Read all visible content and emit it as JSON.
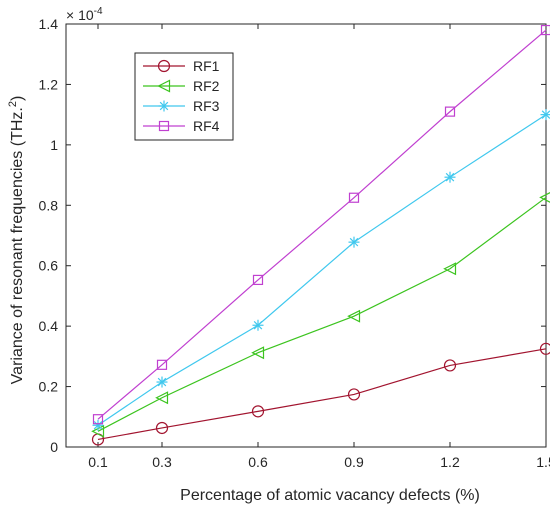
{
  "chart_data": {
    "type": "line",
    "xlabel": "Percentage of atomic vacancy defects (%)",
    "ylabel": "Variance of resonant frequencies (THz.",
    "ylabel_sup": "2",
    "ylabel_close": ")",
    "exponent_base": "× 10",
    "exponent_power": "-4",
    "x": [
      0.1,
      0.3,
      0.6,
      0.9,
      1.2,
      1.5
    ],
    "x_ticks": [
      "0.1",
      "0.3",
      "0.6",
      "0.9",
      "1.2",
      "1.5"
    ],
    "y_ticks": [
      "0",
      "0.2",
      "0.4",
      "0.6",
      "0.8",
      "1",
      "1.2",
      "1.4"
    ],
    "xlim": [
      0,
      1.5
    ],
    "ylim": [
      0,
      1.4
    ],
    "grid": false,
    "legend_position": "top-left",
    "series": [
      {
        "name": "RF1",
        "values": [
          0.025,
          0.063,
          0.118,
          0.174,
          0.27,
          0.325
        ],
        "color": "#a2142f",
        "marker": "circle"
      },
      {
        "name": "RF2",
        "values": [
          0.052,
          0.163,
          0.312,
          0.433,
          0.59,
          0.826
        ],
        "color": "#3cc41f",
        "marker": "triangle-left"
      },
      {
        "name": "RF3",
        "values": [
          0.072,
          0.215,
          0.403,
          0.678,
          0.893,
          1.1
        ],
        "color": "#40c8ee",
        "marker": "asterisk"
      },
      {
        "name": "RF4",
        "values": [
          0.092,
          0.272,
          0.553,
          0.825,
          1.11,
          1.38
        ],
        "color": "#c040d0",
        "marker": "square"
      }
    ]
  }
}
